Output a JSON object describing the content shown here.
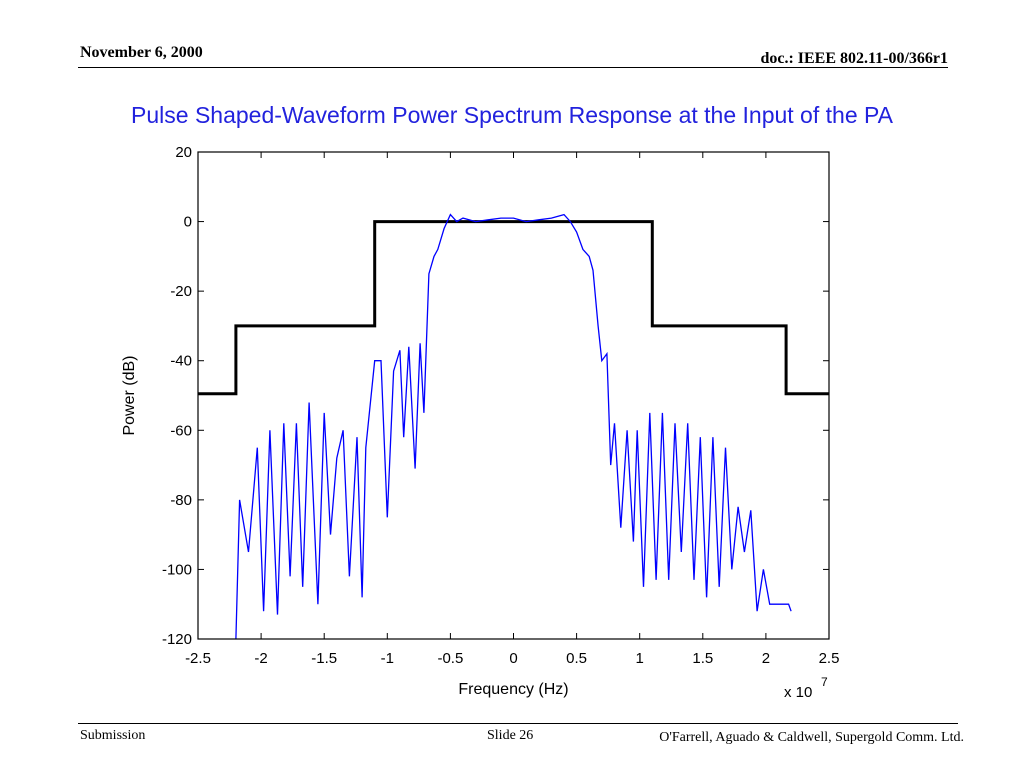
{
  "header": {
    "date": "November 6, 2000",
    "doc": "doc.: IEEE 802.11-00/366r1"
  },
  "slide_title": "Pulse Shaped-Waveform Power Spectrum Response at the Input of the PA",
  "footer": {
    "left": "Submission",
    "center": "Slide 26",
    "right": "O'Farrell, Aguado & Caldwell, Supergold Comm. Ltd."
  },
  "colors": {
    "title": "#2222dd",
    "spectrum": "#0000ff",
    "mask": "#000000"
  },
  "chart_data": {
    "type": "line",
    "title": "Pulse Shaped-Waveform Power Spectrum Response at the Input of the PA",
    "xlabel": "Frequency (Hz)",
    "ylabel": "Power (dB)",
    "x_multiplier_label": "x 10",
    "x_multiplier_exponent": "7",
    "xlim": [
      -2.5,
      2.5
    ],
    "ylim": [
      -120,
      20
    ],
    "xticks": [
      -2.5,
      -2,
      -1.5,
      -1,
      -0.5,
      0,
      0.5,
      1,
      1.5,
      2,
      2.5
    ],
    "xtick_labels": [
      "-2.5",
      "-2",
      "-1.5",
      "-1",
      "-0.5",
      "0",
      "0.5",
      "1",
      "1.5",
      "2",
      "2.5"
    ],
    "yticks": [
      20,
      0,
      -20,
      -40,
      -60,
      -80,
      -100,
      -120
    ],
    "ytick_labels": [
      "20",
      "0",
      "-20",
      "-40",
      "-60",
      "-80",
      "-100",
      "-120"
    ],
    "grid": false,
    "series": [
      {
        "color": "#000000",
        "x": [
          -2.5,
          -2.2,
          -2.2,
          -1.1,
          -1.1,
          1.1,
          1.1,
          2.16,
          2.16,
          2.5
        ],
        "y": [
          -49.5,
          -49.5,
          -30,
          -30,
          0,
          0,
          -30,
          -30,
          -49.5,
          -49.5
        ]
      },
      {
        "color": "#0000ff",
        "x": [
          -2.2,
          -2.17,
          -2.1,
          -2.03,
          -1.98,
          -1.93,
          -1.87,
          -1.82,
          -1.77,
          -1.72,
          -1.67,
          -1.62,
          -1.55,
          -1.5,
          -1.45,
          -1.4,
          -1.35,
          -1.3,
          -1.24,
          -1.2,
          -1.17,
          -1.1,
          -1.05,
          -1.0,
          -0.95,
          -0.9,
          -0.87,
          -0.83,
          -0.78,
          -0.74,
          -0.71,
          -0.67,
          -0.63,
          -0.6,
          -0.55,
          -0.5,
          -0.45,
          -0.4,
          -0.3,
          -0.2,
          -0.1,
          0,
          0.1,
          0.2,
          0.3,
          0.4,
          0.45,
          0.5,
          0.55,
          0.6,
          0.63,
          0.67,
          0.7,
          0.74,
          0.77,
          0.8,
          0.85,
          0.9,
          0.95,
          0.98,
          1.03,
          1.08,
          1.13,
          1.18,
          1.23,
          1.28,
          1.33,
          1.38,
          1.43,
          1.48,
          1.53,
          1.58,
          1.63,
          1.68,
          1.73,
          1.78,
          1.83,
          1.88,
          1.93,
          1.98,
          2.03,
          2.08,
          2.13,
          2.18,
          2.2
        ],
        "y": [
          -120,
          -80,
          -95,
          -65,
          -112,
          -60,
          -113,
          -58,
          -102,
          -58,
          -105,
          -52,
          -110,
          -55,
          -90,
          -68,
          -60,
          -102,
          -62,
          -108,
          -65,
          -40,
          -40,
          -85,
          -43,
          -37,
          -62,
          -36,
          -71,
          -35,
          -55,
          -15,
          -10,
          -8,
          -2,
          2,
          0,
          1,
          0,
          0.5,
          1,
          1,
          0,
          0.5,
          1,
          2,
          0,
          -3,
          -8,
          -10,
          -14,
          -30,
          -40,
          -38,
          -70,
          -58,
          -88,
          -60,
          -92,
          -60,
          -105,
          -55,
          -103,
          -55,
          -103,
          -58,
          -95,
          -58,
          -103,
          -62,
          -108,
          -62,
          -105,
          -65,
          -100,
          -82,
          -95,
          -83,
          -112,
          -100,
          -110,
          -110,
          -110,
          -110,
          -112
        ]
      }
    ]
  }
}
